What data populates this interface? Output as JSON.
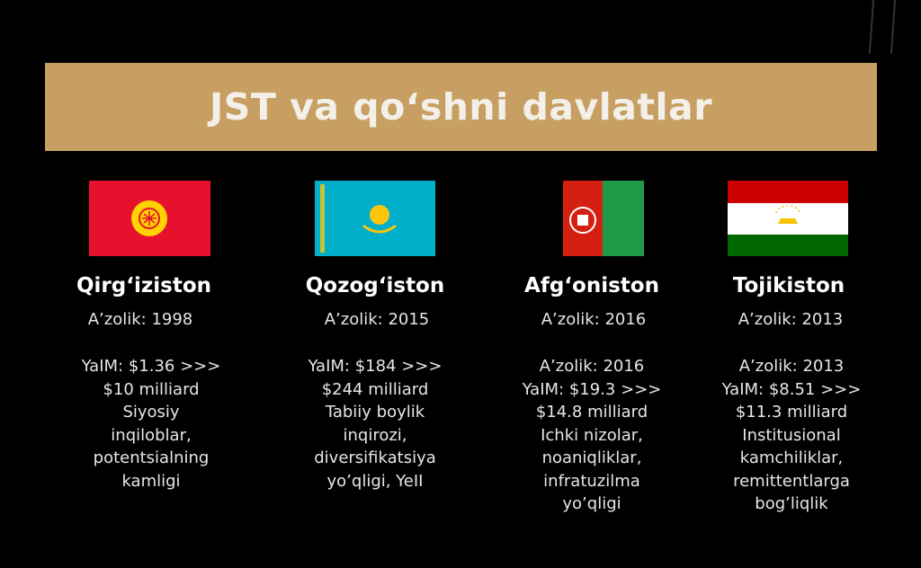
{
  "title": "JST va qo‘shni davlatlar",
  "colors": {
    "banner": "#c79f63",
    "background": "#000000"
  },
  "countries": [
    {
      "name": "Qirg‘iziston",
      "flag": "kyrgyzstan-flag",
      "membership": "A’zolik: 1998",
      "details": [
        "YaIM: $1.36 >>>",
        "$10 milliard",
        "Siyosiy",
        "inqiloblar,",
        "potentsialning",
        "kamligi"
      ]
    },
    {
      "name": "Qozog‘iston",
      "flag": "kazakhstan-flag",
      "membership": "A’zolik: 2015",
      "details": [
        "YaIM: $184 >>>",
        "$244 milliard",
        "Tabiiy boylik",
        "inqirozi,",
        "diversifikatsiya",
        "yo’qligi, YeII"
      ]
    },
    {
      "name": "Afg‘oniston",
      "flag": "afghanistan-flag",
      "membership": "A’zolik: 2016",
      "details": [
        "A’zolik: 2016",
        "YaIM: $19.3 >>>",
        "$14.8 milliard",
        "Ichki nizolar,",
        "noaniqliklar,",
        "infratuzilma",
        "yo’qligi"
      ]
    },
    {
      "name": "Tojikiston",
      "flag": "tajikistan-flag",
      "membership": "A’zolik: 2013",
      "details": [
        "A’zolik: 2013",
        "YaIM: $8.51 >>>",
        "$11.3 milliard",
        "Institusional",
        "kamchiliklar,",
        "remittentlarga",
        "bog’liqlik"
      ]
    }
  ]
}
